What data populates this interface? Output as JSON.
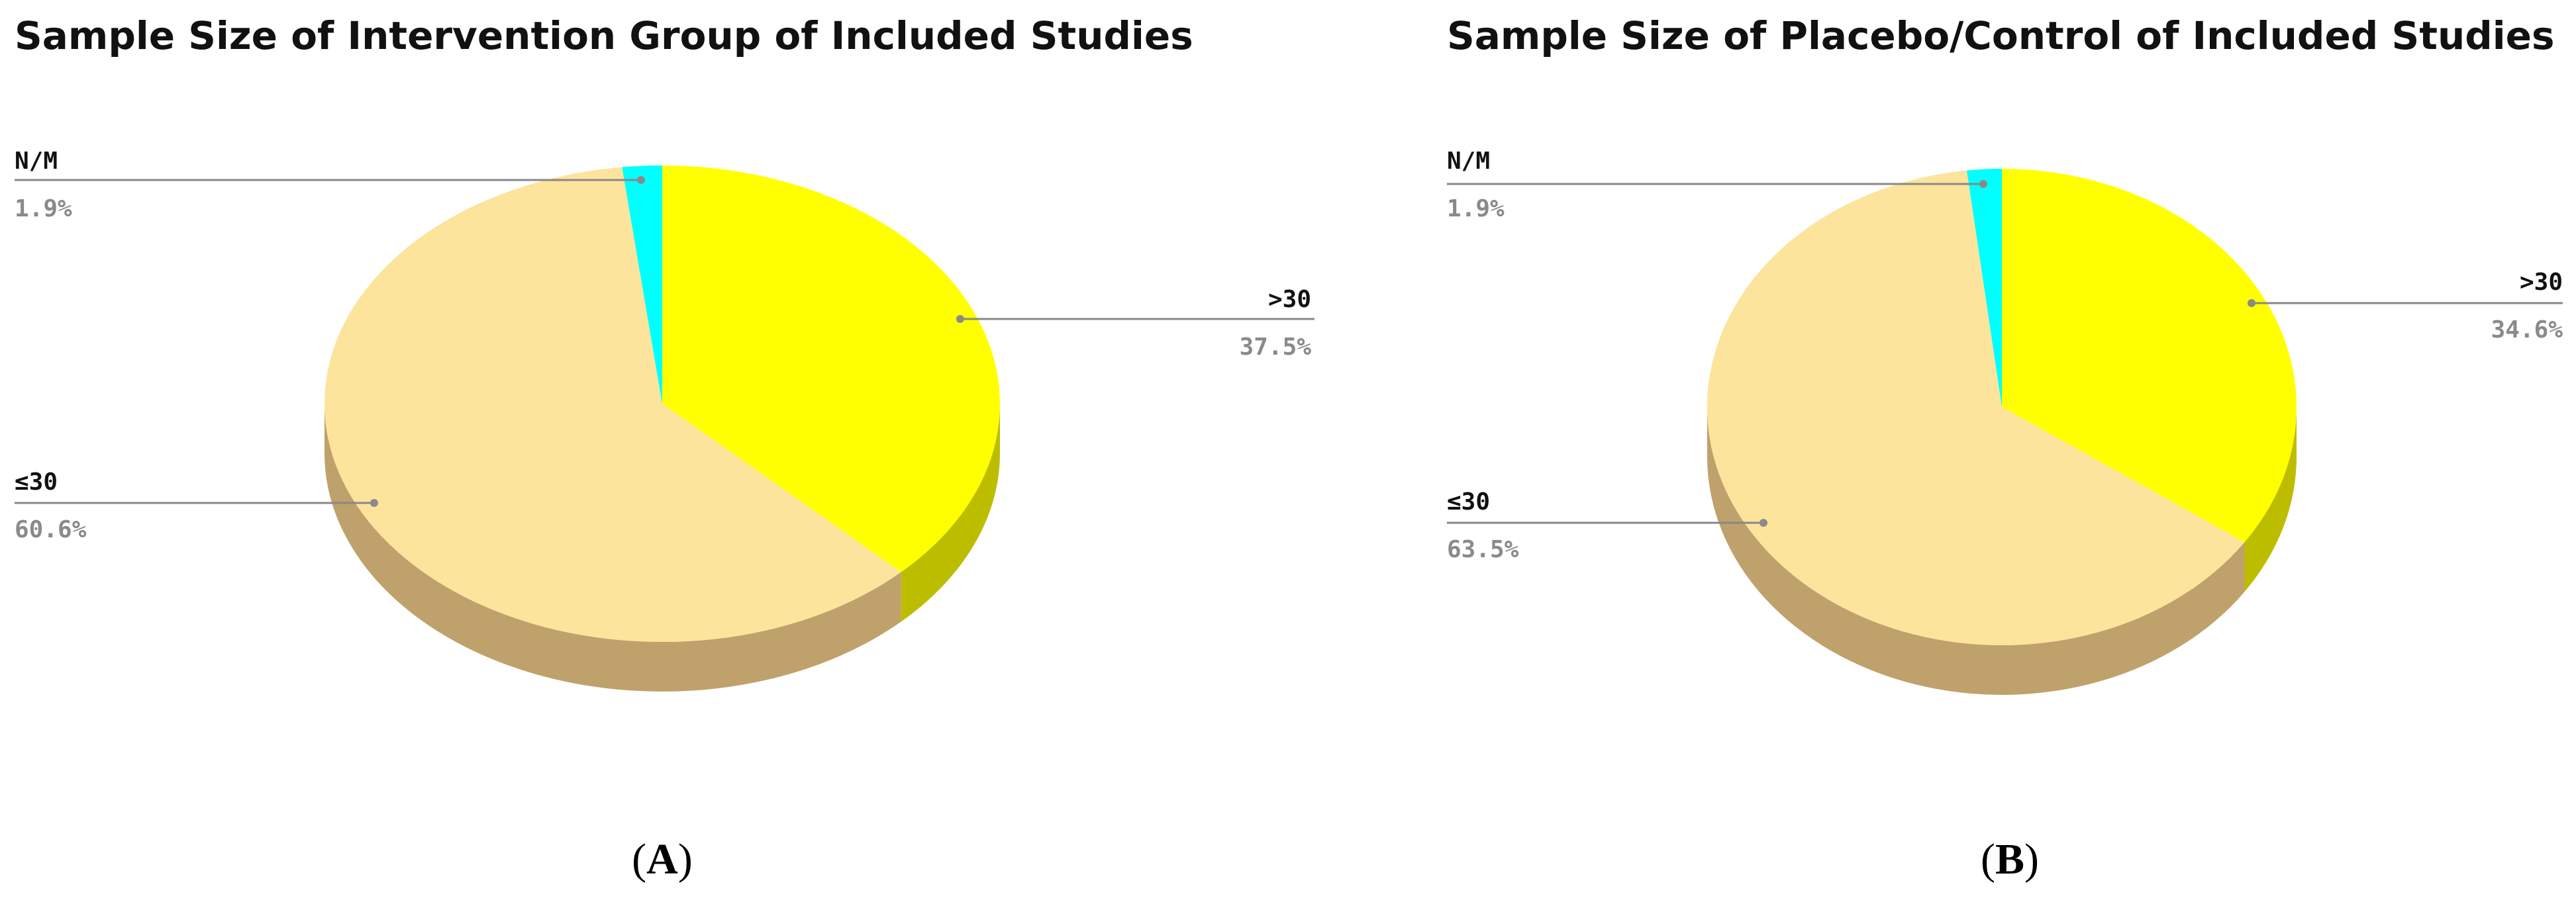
{
  "chart_data": [
    {
      "type": "pie",
      "title": "Sample Size of Intervention Group of Included Studies",
      "panel_label": "A",
      "slices": [
        {
          "label": ">30",
          "value": 37.5,
          "display": "37.5%",
          "color": "#ffff00",
          "side_color": "#bdbd00"
        },
        {
          "label": "≤30",
          "value": 60.6,
          "display": "60.6%",
          "color": "#fde49c",
          "side_color": "#bfa16b"
        },
        {
          "label": "N/M",
          "value": 1.9,
          "display": "1.9%",
          "color": "#00ffff",
          "side_color": "#00bdbd"
        }
      ]
    },
    {
      "type": "pie",
      "title": "Sample Size of Placebo/Control of Included Studies",
      "panel_label": "B",
      "slices": [
        {
          "label": ">30",
          "value": 34.6,
          "display": "34.6%",
          "color": "#ffff00",
          "side_color": "#bdbd00"
        },
        {
          "label": "≤30",
          "value": 63.5,
          "display": "63.5%",
          "color": "#fde49c",
          "side_color": "#bfa16b"
        },
        {
          "label": "N/M",
          "value": 1.9,
          "display": "1.9%",
          "color": "#00ffff",
          "side_color": "#00bdbd"
        }
      ]
    }
  ]
}
